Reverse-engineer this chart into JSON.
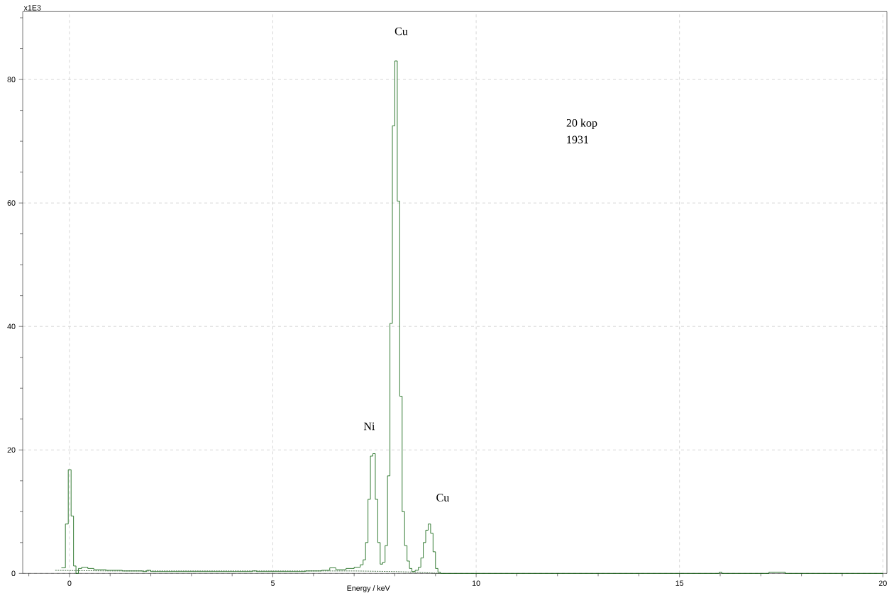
{
  "chart_data": {
    "type": "step",
    "xlabel": "Energy / keV",
    "ylabel": "x1E3",
    "xlim": [
      -1.15,
      20.1
    ],
    "ylim": [
      0,
      91
    ],
    "xticks": [
      {
        "value": -1,
        "label": null
      },
      0,
      {
        "value": 1,
        "label": null
      },
      {
        "value": 2,
        "label": null
      },
      {
        "value": 3,
        "label": null
      },
      {
        "value": 4,
        "label": null
      },
      5,
      {
        "value": 6,
        "label": null
      },
      {
        "value": 7,
        "label": null
      },
      {
        "value": 8,
        "label": null
      },
      {
        "value": 9,
        "label": null
      },
      10,
      {
        "value": 11,
        "label": null
      },
      {
        "value": 12,
        "label": null
      },
      {
        "value": 13,
        "label": null
      },
      {
        "value": 14,
        "label": null
      },
      15,
      {
        "value": 16,
        "label": null
      },
      {
        "value": 17,
        "label": null
      },
      {
        "value": 18,
        "label": null
      },
      {
        "value": 19,
        "label": null
      },
      20
    ],
    "yticks": [
      0,
      {
        "value": 5,
        "label": null
      },
      {
        "value": 10,
        "label": null
      },
      {
        "value": 15,
        "label": null
      },
      20,
      {
        "value": 25,
        "label": null
      },
      {
        "value": 30,
        "label": null
      },
      {
        "value": 35,
        "label": null
      },
      40,
      {
        "value": 45,
        "label": null
      },
      {
        "value": 50,
        "label": null
      },
      {
        "value": 55,
        "label": null
      },
      60,
      {
        "value": 65,
        "label": null
      },
      {
        "value": 70,
        "label": null
      },
      {
        "value": 75,
        "label": null
      },
      80,
      {
        "value": 85,
        "label": null
      },
      {
        "value": 90,
        "label": null
      }
    ],
    "grid": true,
    "series": [
      {
        "color": "#005a00",
        "x": [
          -0.2,
          -0.1,
          -0.03,
          0.04,
          0.1,
          0.16,
          0.22,
          0.3,
          0.45,
          0.6,
          0.9,
          1.3,
          1.8,
          1.9,
          2.0,
          3.0,
          4.5,
          4.6,
          5.5,
          5.8,
          6.2,
          6.4,
          6.55,
          6.8,
          7.0,
          7.15,
          7.22,
          7.28,
          7.34,
          7.4,
          7.46,
          7.52,
          7.58,
          7.64,
          7.7,
          7.76,
          7.82,
          7.88,
          7.94,
          8.0,
          8.06,
          8.12,
          8.18,
          8.24,
          8.3,
          8.36,
          8.42,
          8.5,
          8.58,
          8.64,
          8.7,
          8.76,
          8.82,
          8.88,
          8.94,
          9.0,
          9.06,
          9.12,
          15.98,
          16.04,
          17.2,
          17.6,
          20.0
        ],
        "values": [
          0.9,
          8.0,
          16.8,
          9.3,
          1.2,
          0.0,
          0.8,
          1.0,
          0.8,
          0.6,
          0.5,
          0.4,
          0.3,
          0.5,
          0.3,
          0.3,
          0.4,
          0.3,
          0.3,
          0.4,
          0.5,
          0.9,
          0.6,
          0.8,
          1.0,
          1.4,
          2.2,
          5.0,
          12.0,
          19.0,
          19.4,
          12.0,
          5.0,
          1.5,
          1.8,
          4.5,
          15.8,
          40.5,
          72.5,
          83.0,
          60.3,
          28.7,
          10.0,
          4.5,
          2.0,
          0.8,
          0.3,
          0.5,
          1.0,
          2.5,
          5.0,
          7.0,
          8.0,
          6.5,
          3.5,
          0.8,
          0.2,
          0.0,
          0.2,
          0.0,
          0.2,
          0.0,
          0.0
        ]
      },
      {
        "type": "line",
        "line_style": "dashed",
        "color": "#205020",
        "x": [
          -0.35,
          1.0,
          5.0,
          7.0,
          8.0,
          8.5,
          9.1
        ],
        "values": [
          0.5,
          0.4,
          0.4,
          0.4,
          0.3,
          0.2,
          0.0
        ]
      }
    ],
    "annotations": [
      "Cu",
      "Ni",
      "Cu",
      "20 kop",
      "1931"
    ]
  }
}
